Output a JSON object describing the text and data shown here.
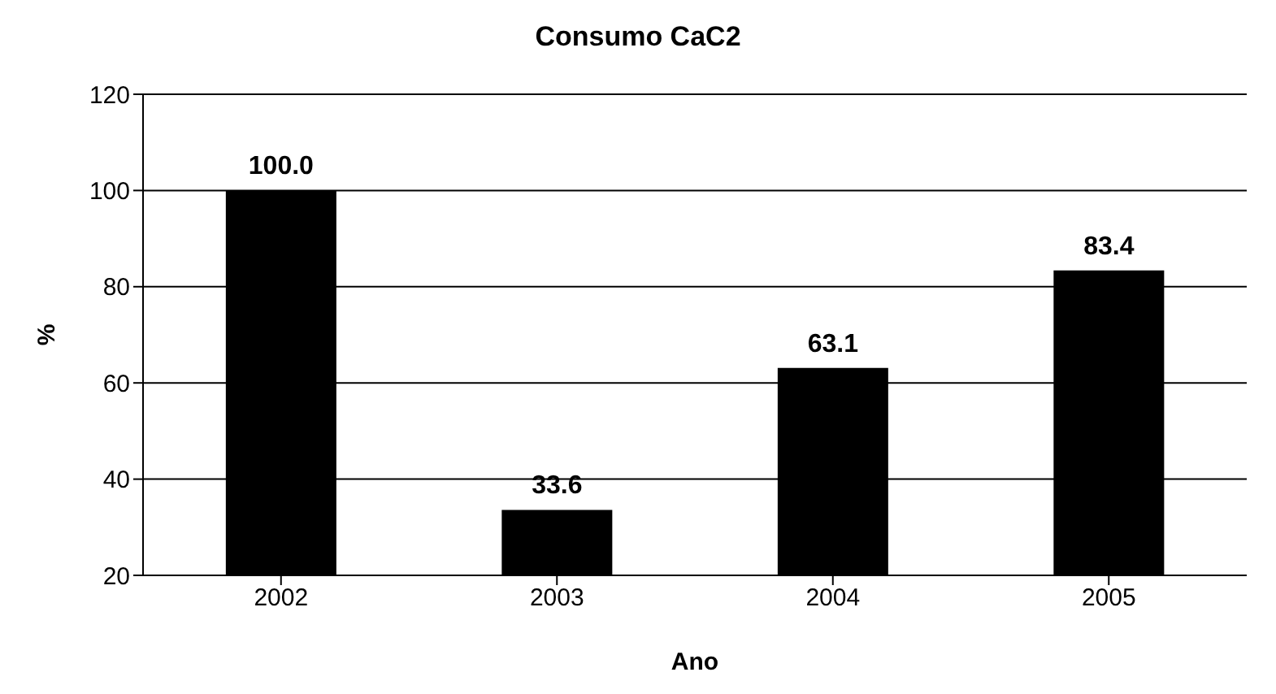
{
  "chart_data": {
    "type": "bar",
    "title": "Consumo CaC2",
    "xlabel": "Ano",
    "ylabel": "%",
    "categories": [
      "2002",
      "2003",
      "2004",
      "2005"
    ],
    "values": [
      100.0,
      33.6,
      63.1,
      83.4
    ],
    "value_labels": [
      "100.0",
      "33.6",
      "63.1",
      "83.4"
    ],
    "color": "#000000",
    "ylim": [
      20,
      120
    ],
    "yticks": [
      20,
      40,
      60,
      80,
      100,
      120
    ],
    "grid": "y",
    "legend": false
  }
}
